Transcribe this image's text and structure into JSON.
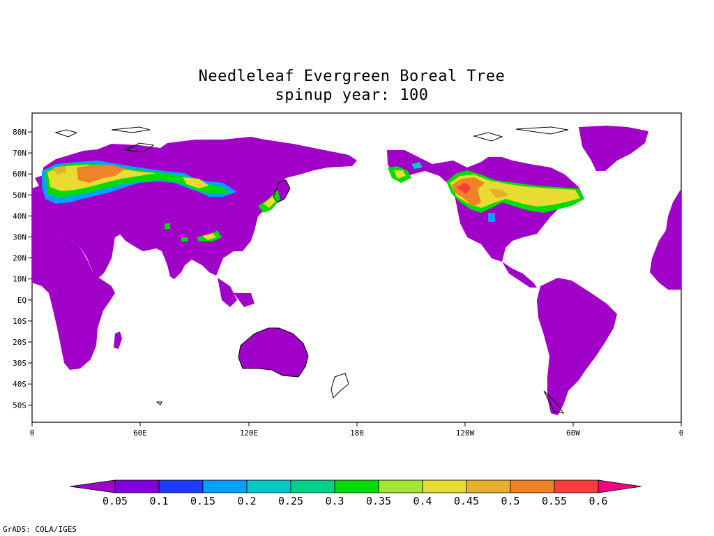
{
  "title": "Needleleaf Evergreen Boreal Tree",
  "subtitle": "spinup year: 100",
  "footer": "GrADS: COLA/IGES",
  "lat_labels": [
    "80N",
    "70N",
    "60N",
    "50N",
    "40N",
    "30N",
    "20N",
    "10N",
    "EQ",
    "10S",
    "20S",
    "30S",
    "40S",
    "50S"
  ],
  "lon_labels": [
    "0",
    "60E",
    "120E",
    "180",
    "120W",
    "60W",
    "0"
  ],
  "colorbar": {
    "labels": [
      "0.05",
      "0.1",
      "0.15",
      "0.2",
      "0.25",
      "0.3",
      "0.35",
      "0.4",
      "0.45",
      "0.5",
      "0.55",
      "0.6"
    ],
    "colors": [
      "#a000c8",
      "#8200dc",
      "#1e3cff",
      "#00a0ff",
      "#00c8c8",
      "#00d28c",
      "#00dc00",
      "#a0e632",
      "#e6dc32",
      "#e6af2d",
      "#f08228",
      "#fa3c3c",
      "#f00082"
    ]
  },
  "colors": {
    "land": "#a000c8",
    "coast": "#000000"
  }
}
